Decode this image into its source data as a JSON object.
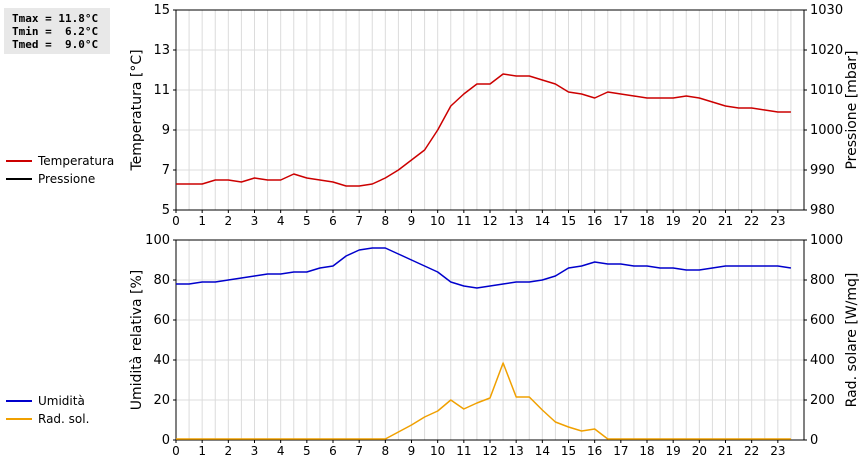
{
  "stats": {
    "tmax": "Tmax = 11.8°C",
    "tmin": "Tmin =  6.2°C",
    "tmed": "Tmed =  9.0°C"
  },
  "legend_top": {
    "items": [
      {
        "label": "Temperatura",
        "color": "#cc0000"
      },
      {
        "label": "Pressione",
        "color": "#000000"
      }
    ]
  },
  "legend_bottom": {
    "items": [
      {
        "label": "Umidità",
        "color": "#0000cc"
      },
      {
        "label": "Rad. sol.",
        "color": "#f0a000"
      }
    ]
  },
  "chart_data": [
    {
      "type": "line",
      "xlabel": "",
      "x_ticks": [
        "0",
        "1",
        "2",
        "3",
        "4",
        "5",
        "6",
        "7",
        "8",
        "9",
        "10",
        "11",
        "12",
        "13",
        "14",
        "15",
        "16",
        "17",
        "18",
        "19",
        "20",
        "21",
        "22",
        "23"
      ],
      "xlim": [
        0,
        24
      ],
      "y_left_label": "Temperatura [°C]",
      "y_left_lim": [
        5,
        15
      ],
      "y_left_ticks": [
        "5",
        "7",
        "9",
        "11",
        "13",
        "15"
      ],
      "y_right_label": "Pressione [mbar]",
      "y_right_lim": [
        980,
        1030
      ],
      "y_right_ticks": [
        "980",
        "990",
        "1000",
        "1010",
        "1020",
        "1030"
      ],
      "grid": true,
      "series": [
        {
          "name": "Temperatura",
          "axis": "left",
          "color": "#cc0000",
          "x": [
            0,
            0.5,
            1,
            1.5,
            2,
            2.5,
            3,
            3.5,
            4,
            4.5,
            5,
            5.5,
            6,
            6.5,
            7,
            7.5,
            8,
            8.5,
            9,
            9.5,
            10,
            10.5,
            11,
            11.5,
            12,
            12.5,
            13,
            13.5,
            14,
            14.5,
            15,
            15.5,
            16,
            16.5,
            17,
            17.5,
            18,
            18.5,
            19,
            19.5,
            20,
            20.5,
            21,
            21.5,
            22,
            22.5,
            23,
            23.5
          ],
          "values": [
            6.3,
            6.3,
            6.3,
            6.5,
            6.5,
            6.4,
            6.6,
            6.5,
            6.5,
            6.8,
            6.6,
            6.5,
            6.4,
            6.2,
            6.2,
            6.3,
            6.6,
            7.0,
            7.5,
            8.0,
            9.0,
            10.2,
            10.8,
            11.3,
            11.3,
            11.8,
            11.7,
            11.7,
            11.5,
            11.3,
            10.9,
            10.8,
            10.6,
            10.9,
            10.8,
            10.7,
            10.6,
            10.6,
            10.6,
            10.7,
            10.6,
            10.4,
            10.2,
            10.1,
            10.1,
            10.0,
            9.9,
            9.9
          ]
        }
      ]
    },
    {
      "type": "line",
      "xlabel": "",
      "x_ticks": [
        "0",
        "1",
        "2",
        "3",
        "4",
        "5",
        "6",
        "7",
        "8",
        "9",
        "10",
        "11",
        "12",
        "13",
        "14",
        "15",
        "16",
        "17",
        "18",
        "19",
        "20",
        "21",
        "22",
        "23"
      ],
      "xlim": [
        0,
        24
      ],
      "y_left_label": "Umidità relativa [%]",
      "y_left_lim": [
        0,
        100
      ],
      "y_left_ticks": [
        "0",
        "20",
        "40",
        "60",
        "80",
        "100"
      ],
      "y_right_label": "Rad. solare [W/mq]",
      "y_right_lim": [
        0,
        1000
      ],
      "y_right_ticks": [
        "0",
        "200",
        "400",
        "600",
        "800",
        "1000"
      ],
      "grid": true,
      "series": [
        {
          "name": "Umidità",
          "axis": "left",
          "color": "#0000cc",
          "x": [
            0,
            0.5,
            1,
            1.5,
            2,
            2.5,
            3,
            3.5,
            4,
            4.5,
            5,
            5.5,
            6,
            6.5,
            7,
            7.5,
            8,
            8.5,
            9,
            9.5,
            10,
            10.5,
            11,
            11.5,
            12,
            12.5,
            13,
            13.5,
            14,
            14.5,
            15,
            15.5,
            16,
            16.5,
            17,
            17.5,
            18,
            18.5,
            19,
            19.5,
            20,
            20.5,
            21,
            21.5,
            22,
            22.5,
            23,
            23.5
          ],
          "values": [
            78,
            78,
            79,
            79,
            80,
            81,
            82,
            83,
            83,
            84,
            84,
            86,
            87,
            92,
            95,
            96,
            96,
            93,
            90,
            87,
            84,
            79,
            77,
            76,
            77,
            78,
            79,
            79,
            80,
            82,
            86,
            87,
            89,
            88,
            88,
            87,
            87,
            86,
            86,
            85,
            85,
            86,
            87,
            87,
            87,
            87,
            87,
            86
          ]
        },
        {
          "name": "Rad. sol.",
          "axis": "right",
          "color": "#f0a000",
          "x": [
            0,
            0.5,
            1,
            1.5,
            2,
            2.5,
            3,
            3.5,
            4,
            4.5,
            5,
            5.5,
            6,
            6.5,
            7,
            7.5,
            8,
            8.5,
            9,
            9.5,
            10,
            10.5,
            11,
            11.5,
            12,
            12.5,
            13,
            13.5,
            14,
            14.5,
            15,
            15.5,
            16,
            16.5,
            17,
            17.5,
            18,
            18.5,
            19,
            19.5,
            20,
            20.5,
            21,
            21.5,
            22,
            22.5,
            23,
            23.5
          ],
          "values": [
            5,
            5,
            5,
            5,
            5,
            5,
            5,
            5,
            5,
            5,
            5,
            5,
            5,
            5,
            5,
            5,
            5,
            40,
            75,
            115,
            145,
            200,
            155,
            185,
            210,
            385,
            215,
            215,
            150,
            90,
            65,
            45,
            55,
            5,
            5,
            5,
            5,
            5,
            5,
            5,
            5,
            5,
            5,
            5,
            5,
            5,
            5,
            5
          ]
        }
      ]
    }
  ]
}
